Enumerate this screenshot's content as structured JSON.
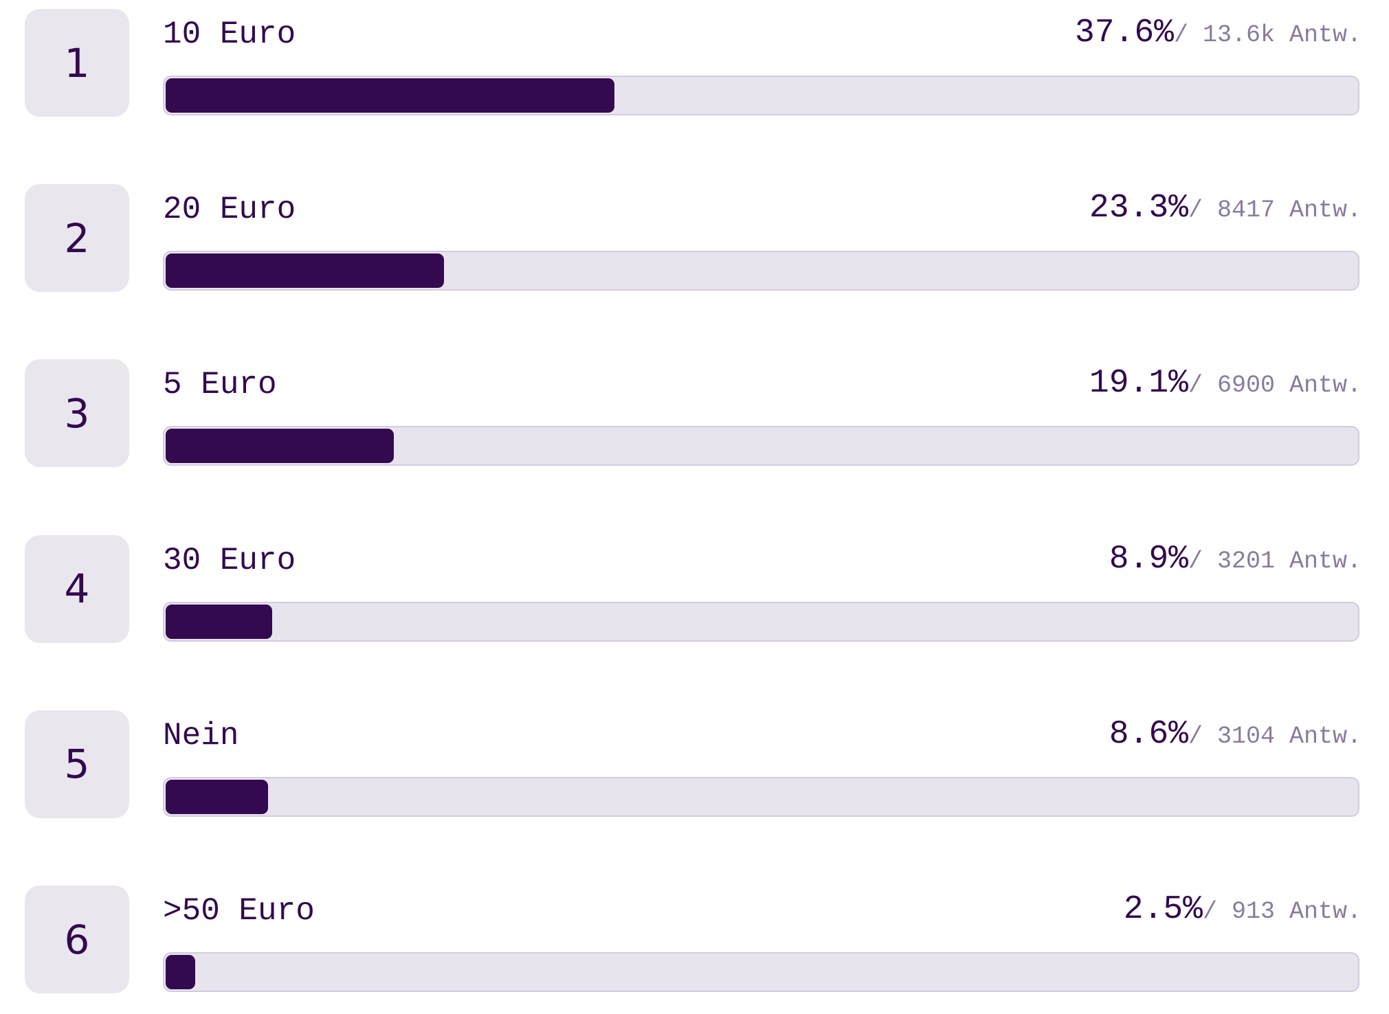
{
  "poll": {
    "xlim": [
      0,
      100
    ],
    "options": [
      {
        "rank": 1,
        "label": "10 Euro",
        "percent": 37.6,
        "percent_label": "37.6%",
        "votes": "/ 13.6k Antw."
      },
      {
        "rank": 2,
        "label": "20 Euro",
        "percent": 23.3,
        "percent_label": "23.3%",
        "votes": "/ 8417 Antw."
      },
      {
        "rank": 3,
        "label": "5 Euro",
        "percent": 19.1,
        "percent_label": "19.1%",
        "votes": "/ 6900 Antw."
      },
      {
        "rank": 4,
        "label": "30 Euro",
        "percent": 8.9,
        "percent_label": "8.9%",
        "votes": "/ 3201 Antw."
      },
      {
        "rank": 5,
        "label": "Nein",
        "percent": 8.6,
        "percent_label": "8.6%",
        "votes": "/ 3104 Antw."
      },
      {
        "rank": 6,
        "label": ">50 Euro",
        "percent": 2.5,
        "percent_label": "2.5%",
        "votes": "/ 913 Antw."
      }
    ]
  }
}
